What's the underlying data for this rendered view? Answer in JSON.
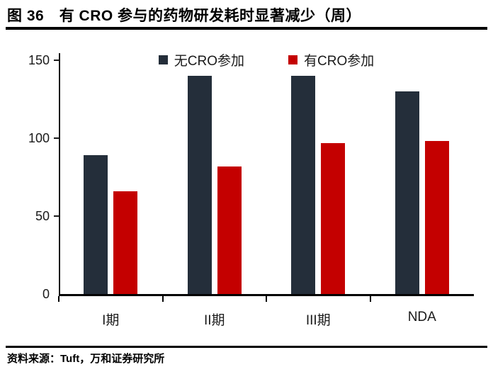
{
  "title": "图 36　有 CRO 参与的药物研发耗时显著减少（周）",
  "source": "资料来源：Tuft，万和证券研究所",
  "chart_data": {
    "type": "bar",
    "title": "有 CRO 参与的药物研发耗时显著减少（周）",
    "categories": [
      "I期",
      "II期",
      "III期",
      "NDA"
    ],
    "series": [
      {
        "name": "无CRO参加",
        "color": "#242E3A",
        "values": [
          89,
          140,
          140,
          130
        ]
      },
      {
        "name": "有CRO参加",
        "color": "#C40000",
        "values": [
          66,
          82,
          97,
          98
        ]
      }
    ],
    "xlabel": "",
    "ylabel": "",
    "unit": "周",
    "yticks": [
      0,
      50,
      100,
      150
    ],
    "ylim": [
      0,
      150
    ],
    "grid": false,
    "legend_position": "top-center"
  }
}
